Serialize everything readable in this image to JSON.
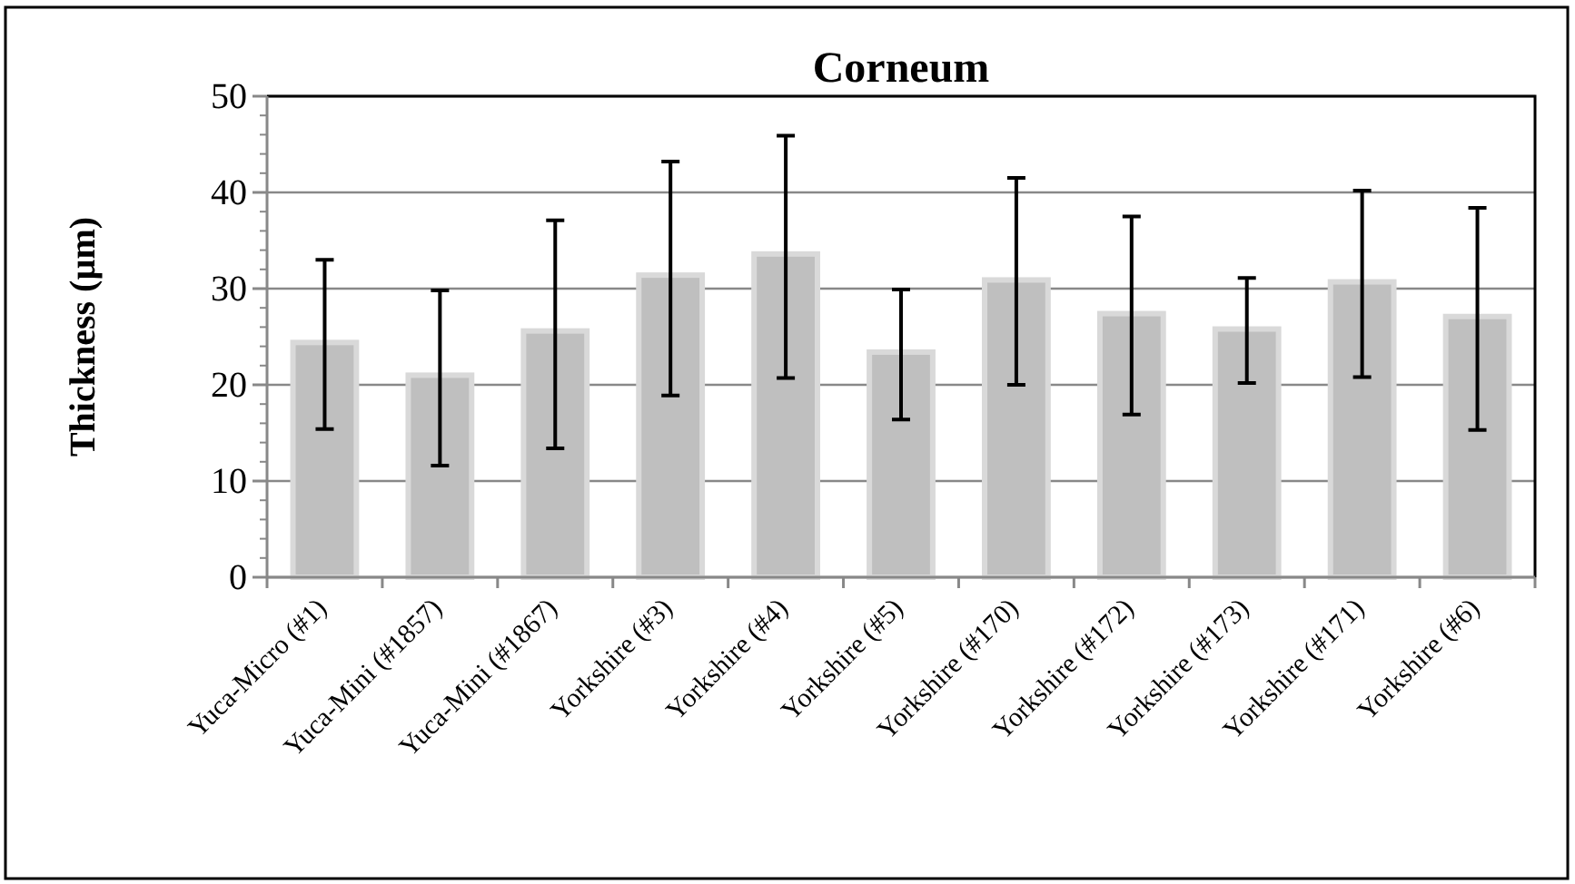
{
  "chart_data": {
    "type": "bar",
    "title": "Corneum",
    "ylabel": "Thickness (µm)",
    "categories": [
      "Yuca-Micro (#1)",
      "Yuca-Mini (#1857)",
      "Yuca-Mini (#1867)",
      "Yorkshire (#3)",
      "Yorkshire (#4)",
      "Yorkshire (#5)",
      "Yorkshire (#170)",
      "Yorkshire (#172)",
      "Yorkshire (#173)",
      "Yorkshire (#171)",
      "Yorkshire (#6)"
    ],
    "values": [
      24.4,
      21.0,
      25.6,
      31.4,
      33.6,
      23.4,
      30.9,
      27.4,
      25.8,
      30.7,
      27.1
    ],
    "errors": [
      [
        15.4,
        33.0
      ],
      [
        11.6,
        29.8
      ],
      [
        13.4,
        37.1
      ],
      [
        18.9,
        43.2
      ],
      [
        20.7,
        45.9
      ],
      [
        16.4,
        29.9
      ],
      [
        20.0,
        41.5
      ],
      [
        16.9,
        37.5
      ],
      [
        20.2,
        31.1
      ],
      [
        20.8,
        40.2
      ],
      [
        15.3,
        38.4
      ]
    ],
    "color": "#bfbfbf",
    "ylim": [
      0,
      50
    ],
    "yticks": [
      0,
      10,
      20,
      30,
      40,
      50
    ],
    "grid": "y"
  }
}
